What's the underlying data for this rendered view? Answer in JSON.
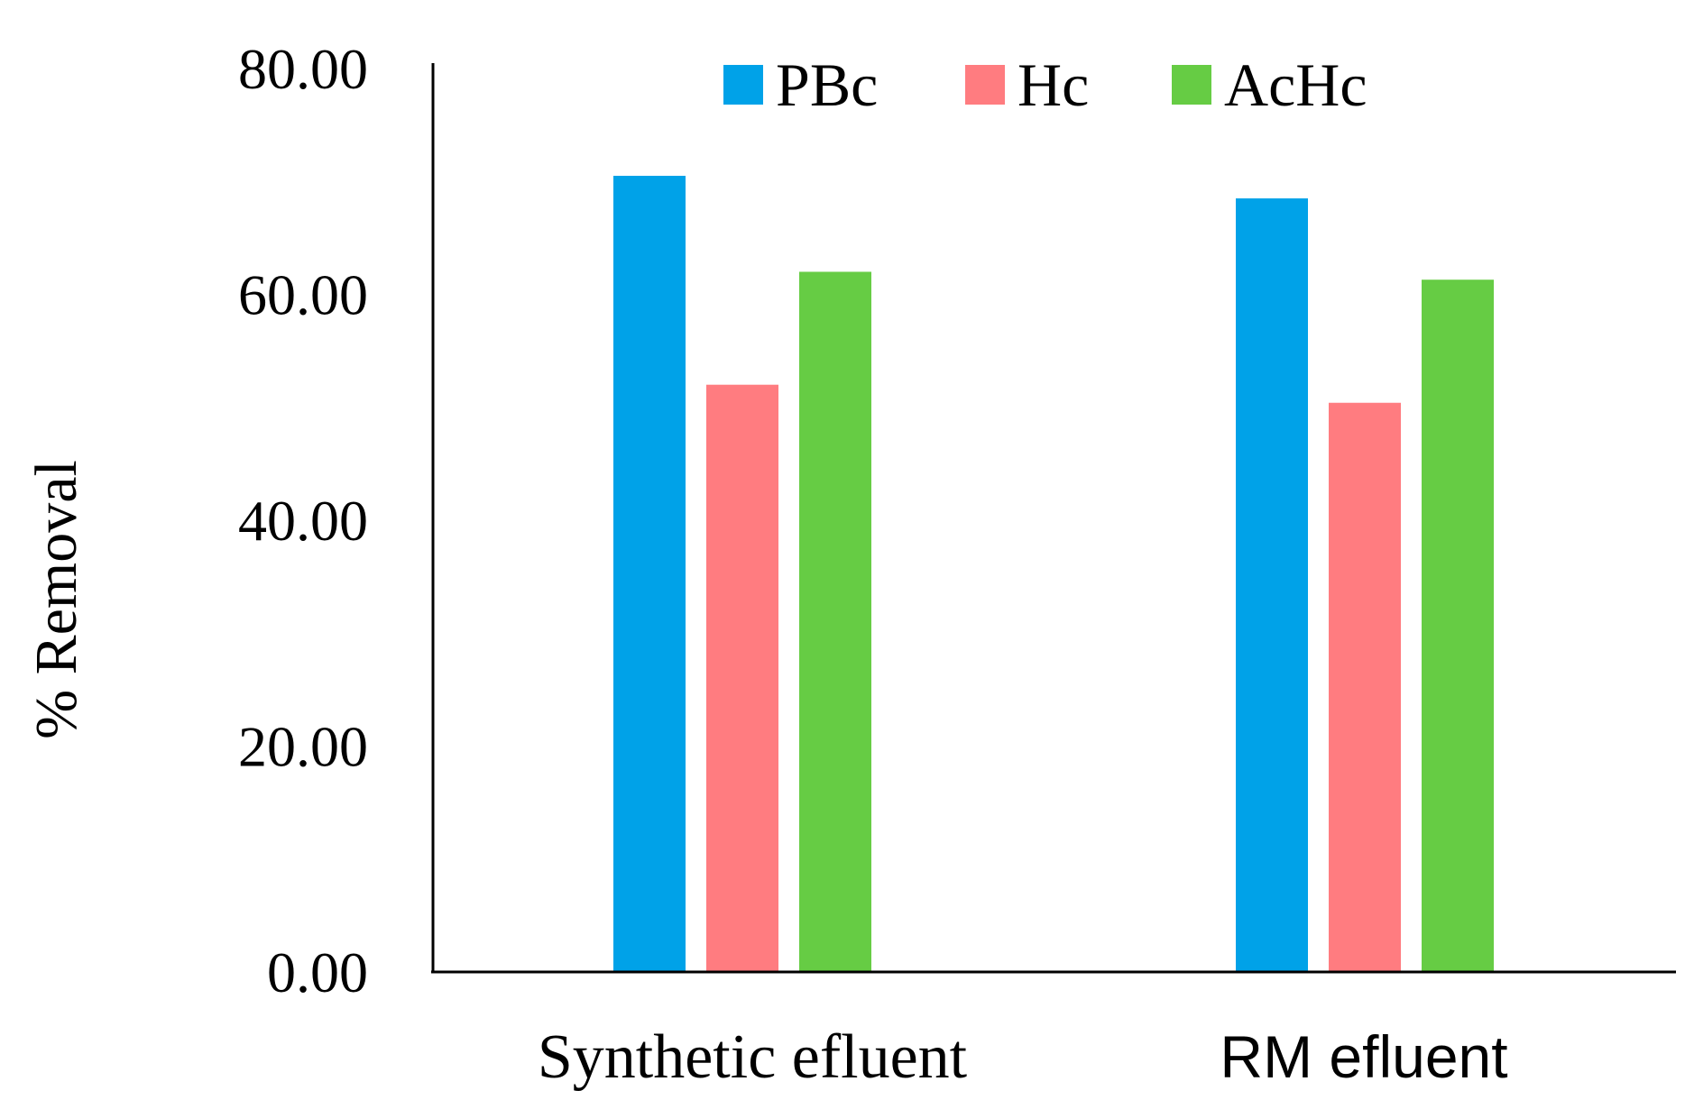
{
  "chart_data": {
    "type": "bar",
    "title": "",
    "xlabel": "",
    "ylabel": "% Removal",
    "ylim": [
      0,
      80
    ],
    "yticks": [
      "0.00",
      "20.00",
      "40.00",
      "60.00",
      "80.00"
    ],
    "grid": false,
    "legend_position": "top",
    "categories": [
      "Synthetic efluent",
      "RM efluent"
    ],
    "series": [
      {
        "name": "PBc",
        "color": "#00a2e8",
        "values": [
          70.5,
          68.5
        ]
      },
      {
        "name": "Hc",
        "color": "#ff7c80",
        "values": [
          52.0,
          50.4
        ]
      },
      {
        "name": "AcHc",
        "color": "#66cc44",
        "values": [
          62.0,
          61.3
        ]
      }
    ]
  }
}
